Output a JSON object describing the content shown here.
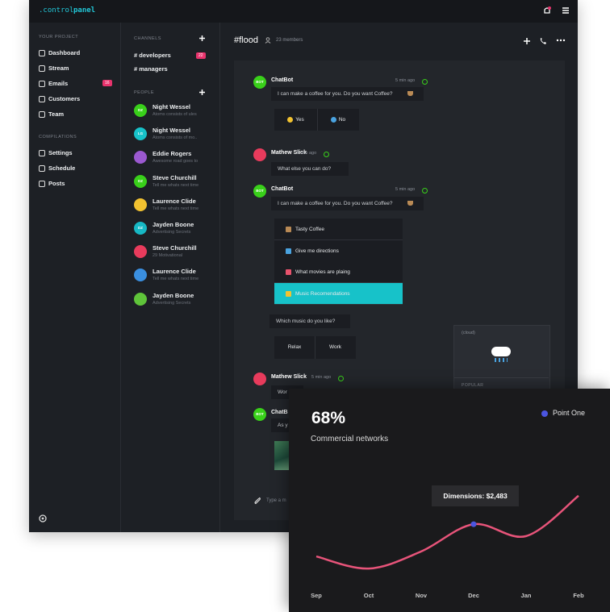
{
  "topbar": {
    "logo_prefix": ".control",
    "logo_suffix": "panel"
  },
  "sidebar": {
    "sections": [
      {
        "title": "YOUR PROJECT",
        "items": [
          {
            "label": "Dashboard"
          },
          {
            "label": "Stream"
          },
          {
            "label": "Emails",
            "badge": 16
          },
          {
            "label": "Customers"
          },
          {
            "label": "Team"
          }
        ]
      },
      {
        "title": "COMPILATIONS",
        "items": [
          {
            "label": "Settings"
          },
          {
            "label": "Schedule"
          },
          {
            "label": "Posts"
          }
        ]
      }
    ]
  },
  "channels": {
    "title": "CHANNELS",
    "items": [
      {
        "label": "# developers",
        "badge": 22
      },
      {
        "label": "# managers"
      }
    ]
  },
  "people": {
    "title": "PEOPLE",
    "items": [
      {
        "name": "Night Wessel",
        "message": "Atoms consists of ules",
        "initials": "DZ",
        "color": "#39d01a"
      },
      {
        "name": "Night Wessel",
        "message": "Atoms consists of mo..",
        "initials": "LG",
        "color": "#17c2c9"
      },
      {
        "name": "Eddie Rogers",
        "message": "Awesome road goes to",
        "color": "#9b59d0"
      },
      {
        "name": "Steve Churchill",
        "message": "Tell me whats next time",
        "initials": "DZ",
        "color": "#39d01a"
      },
      {
        "name": "Laurence Clide",
        "message": "Tell me whats next time",
        "color": "#f2c230"
      },
      {
        "name": "Jayden Boone",
        "message": "Advertising Secrets",
        "initials": "DZ",
        "color": "#17b8c4"
      },
      {
        "name": "Steve Churchill",
        "message": "29 Motivational",
        "color": "#e83b5c"
      },
      {
        "name": "Laurence Clide",
        "message": "Tell me whats next time",
        "color": "#3a8fe0"
      },
      {
        "name": "Jayden Boone",
        "message": "Advertising Secrets",
        "color": "#5fc43a"
      }
    ]
  },
  "conversation": {
    "channel": "#flood",
    "members": "23 members",
    "messages": [
      {
        "author": "ChatBot",
        "avatar": "BOT",
        "time": "5 min ago",
        "text": "I can make a coffee for you. Do you want Coffee?",
        "buttons": [
          "Yes",
          "No"
        ]
      },
      {
        "author": "Mathew Slick",
        "time": "5 min ago",
        "text": "What else you can do?"
      },
      {
        "author": "ChatBot",
        "avatar": "BOT",
        "time": "5 min ago",
        "text": "I can make a coffee for you. Do you want Coffee?",
        "options": [
          "Tasty Coffee",
          "Give me directions",
          "What movies are plaing",
          "Music Recomendations"
        ]
      },
      {
        "text": "Which music do you like?",
        "buttons": [
          "Relax",
          "Work"
        ]
      },
      {
        "author": "Mathew Slick",
        "time": "5 min ago",
        "text": "Wor"
      },
      {
        "author": "ChatB",
        "avatar": "BOT",
        "text": "As y"
      }
    ],
    "popup": {
      "tag": "(cloud)",
      "footer": "POPULAR"
    },
    "input_placeholder": "Type a m"
  },
  "chart_data": {
    "type": "line",
    "headline": "68%",
    "subtitle": "Commercial networks",
    "categories": [
      "Sep",
      "Oct",
      "Nov",
      "Dec",
      "Jan",
      "Feb"
    ],
    "series": [
      {
        "name": "Point One",
        "color": "#4b55e0",
        "line_color": "#e8547a",
        "values": [
          1580,
          1240,
          1720,
          2483,
          2150,
          3280
        ]
      }
    ],
    "ylim": [
      0,
      4000
    ],
    "tooltip": {
      "category": "Dec",
      "label": "Dimensions: $2,483"
    }
  }
}
